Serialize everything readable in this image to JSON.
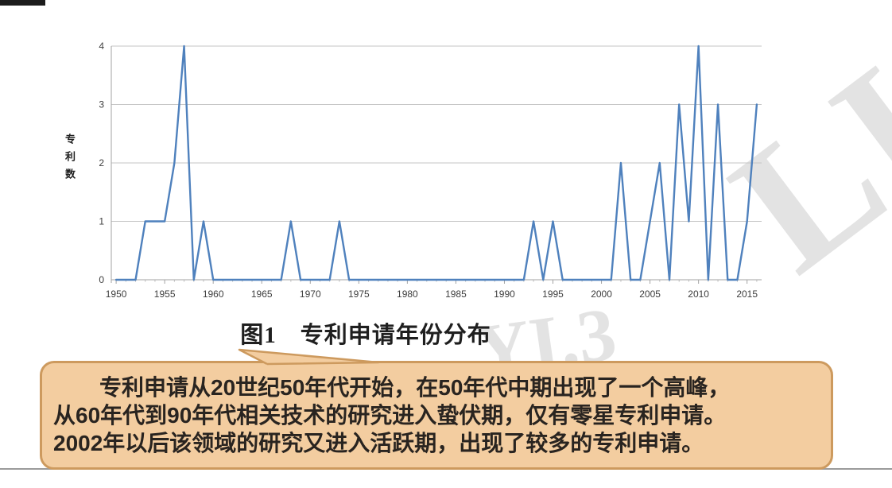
{
  "page": {
    "watermarks": {
      "right_fragment": "LI",
      "center_fragment": "YI.3"
    }
  },
  "chart_data": {
    "type": "line",
    "title": "图1　专利申请年份分布",
    "xlabel": "",
    "ylabel": "专利数",
    "grid": true,
    "legend": "none",
    "line_color": "#4f81bd",
    "ylim": [
      0,
      4
    ],
    "y_ticks": [
      0,
      1,
      2,
      3,
      4
    ],
    "x_tick_labels": [
      "1950",
      "1955",
      "1960",
      "1965",
      "1970",
      "1975",
      "1980",
      "1985",
      "1990",
      "1995",
      "2000",
      "2005",
      "2010",
      "2015"
    ],
    "x": [
      1950,
      1951,
      1952,
      1953,
      1954,
      1955,
      1956,
      1957,
      1958,
      1959,
      1960,
      1961,
      1962,
      1963,
      1964,
      1965,
      1966,
      1967,
      1968,
      1969,
      1970,
      1971,
      1972,
      1973,
      1974,
      1975,
      1976,
      1977,
      1978,
      1979,
      1980,
      1981,
      1982,
      1983,
      1984,
      1985,
      1986,
      1987,
      1988,
      1989,
      1990,
      1991,
      1992,
      1993,
      1994,
      1995,
      1996,
      1997,
      1998,
      1999,
      2000,
      2001,
      2002,
      2003,
      2004,
      2005,
      2006,
      2007,
      2008,
      2009,
      2010,
      2011,
      2012,
      2013,
      2014,
      2015,
      2016
    ],
    "series": [
      {
        "name": "专利数",
        "values": [
          0,
          0,
          0,
          1,
          1,
          1,
          2,
          4,
          0,
          1,
          0,
          0,
          0,
          0,
          0,
          0,
          0,
          0,
          1,
          0,
          0,
          0,
          0,
          1,
          0,
          0,
          0,
          0,
          0,
          0,
          0,
          0,
          0,
          0,
          0,
          0,
          0,
          0,
          0,
          0,
          0,
          0,
          0,
          1,
          0,
          1,
          0,
          0,
          0,
          0,
          0,
          0,
          2,
          0,
          0,
          1,
          2,
          0,
          3,
          1,
          4,
          0,
          3,
          0,
          0,
          1,
          3
        ]
      }
    ]
  },
  "callout": {
    "fill": "#f3cda0",
    "border": "#cd9a5e",
    "lines": [
      "专利申请从20世纪50年代开始，在50年代中期出现了一个高峰，",
      "从60年代到90年代相关技术的研究进入蛰伏期，仅有零星专利申请。",
      "2002年以后该领域的研究又进入活跃期，出现了较多的专利申请。"
    ]
  }
}
